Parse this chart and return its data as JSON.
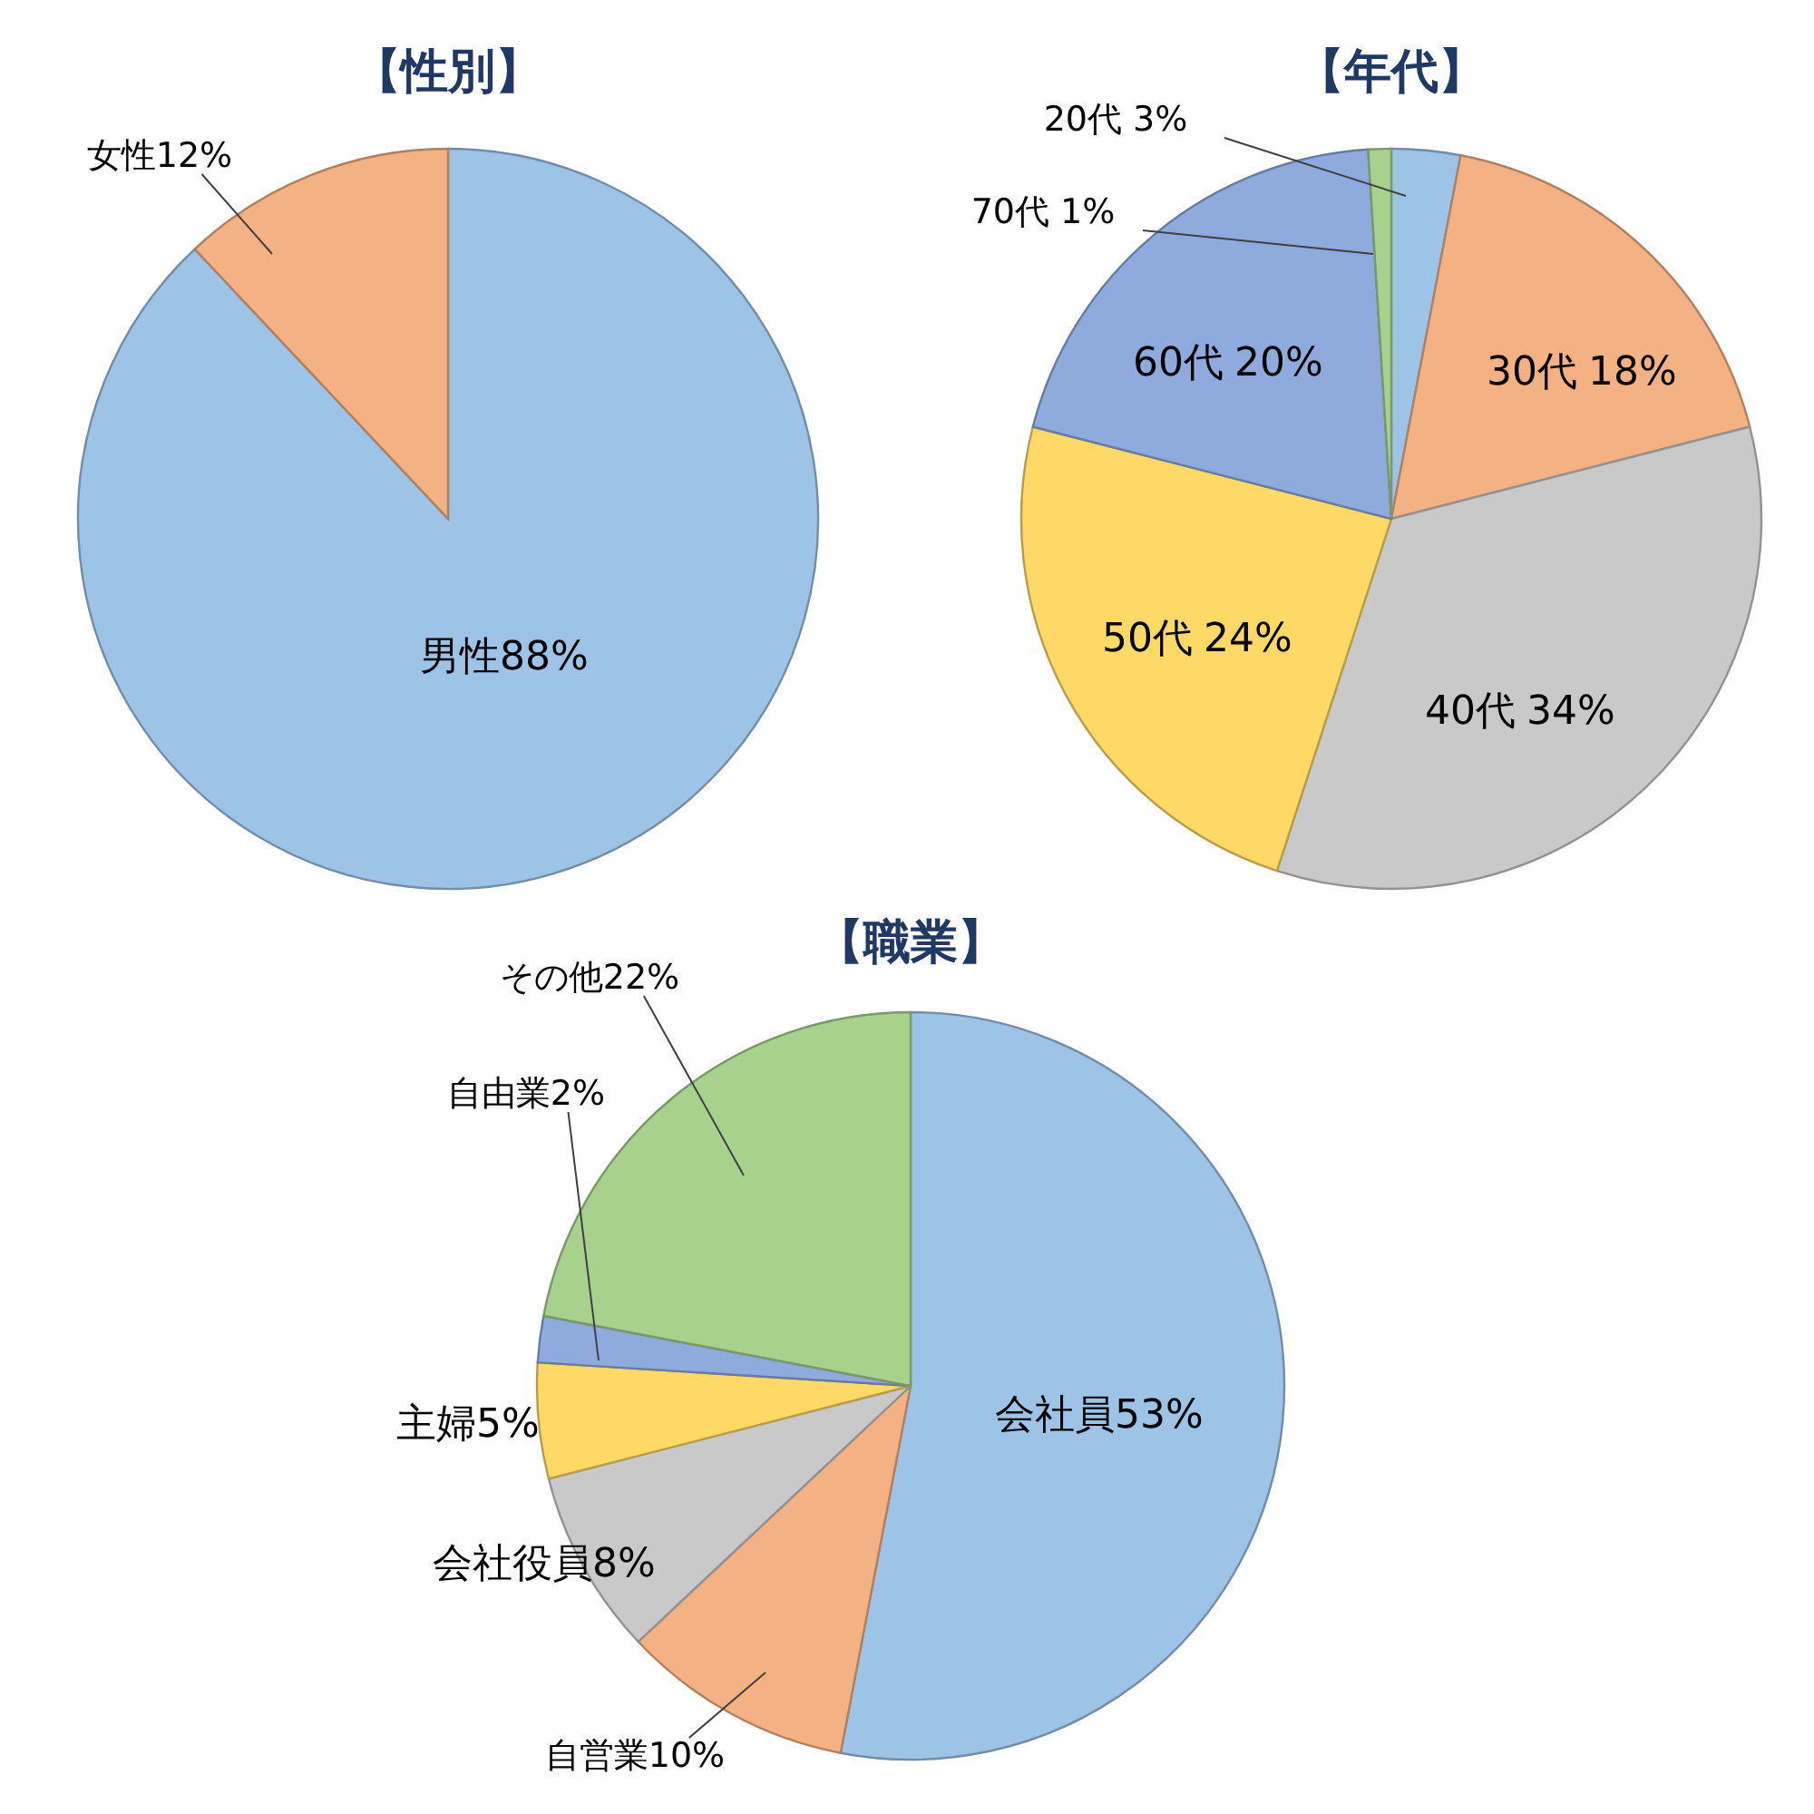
{
  "chart_data": [
    {
      "type": "pie",
      "title": "【性別】",
      "categories": [
        "男性",
        "女性"
      ],
      "values": [
        88,
        12
      ],
      "colors": [
        "#9dc3e6",
        "#f4b183"
      ],
      "value_labels": [
        "88%",
        "12%"
      ],
      "legend": false
    },
    {
      "type": "pie",
      "title": "【年代】",
      "categories": [
        "20代",
        "30代",
        "40代",
        "50代",
        "60代",
        "70代"
      ],
      "values": [
        3,
        18,
        34,
        24,
        20,
        1
      ],
      "colors": [
        "#9dc3e6",
        "#f4b183",
        "#c9c9c9",
        "#ffd966",
        "#8faadc",
        "#a9d18e"
      ],
      "value_labels": [
        "3%",
        "18%",
        "34%",
        "24%",
        "20%",
        "1%"
      ],
      "legend": false
    },
    {
      "type": "pie",
      "title": "【職業】",
      "categories": [
        "会社員",
        "自営業",
        "会社役員",
        "主婦",
        "自由業",
        "その他"
      ],
      "values": [
        53,
        10,
        8,
        5,
        2,
        22
      ],
      "colors": [
        "#9dc3e6",
        "#f4b183",
        "#c9c9c9",
        "#ffd966",
        "#8faadc",
        "#a9d18e"
      ],
      "value_labels": [
        "53%",
        "10%",
        "8%",
        "5%",
        "2%",
        "22%"
      ],
      "legend": false
    }
  ]
}
